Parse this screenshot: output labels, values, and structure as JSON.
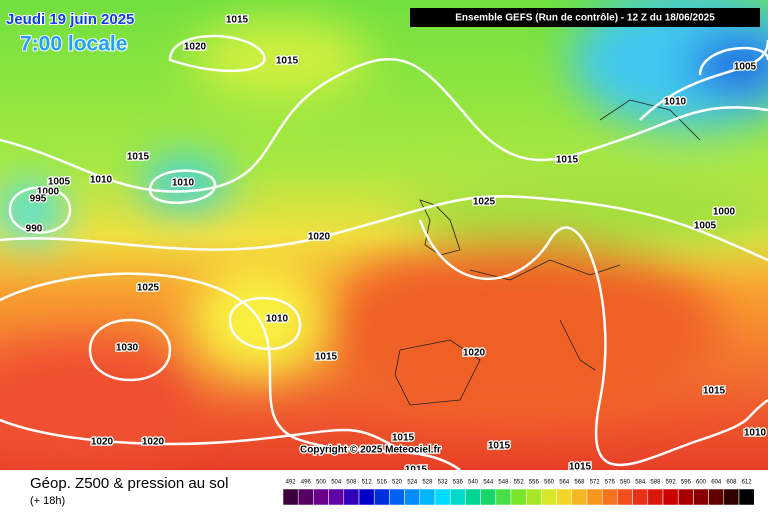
{
  "date": "Jeudi 19 juin 2025",
  "time": "7:00 locale",
  "header": "Ensemble GEFS  (Run de contrôle)  -  12 Z du 18/06/2025",
  "copyright": "Copyright © 2025 Meteociel.fr",
  "caption": "Géop. Z500 & pression au sol",
  "lead": "(+ 18h)",
  "scale": [
    492,
    496,
    500,
    504,
    508,
    512,
    516,
    520,
    524,
    528,
    532,
    536,
    540,
    544,
    548,
    552,
    556,
    560,
    564,
    568,
    572,
    576,
    580,
    584,
    588,
    592,
    596,
    600,
    604,
    608,
    612
  ],
  "isobar_labels": [
    "1015",
    "1020",
    "1015",
    "1005",
    "1010",
    "1015",
    "1015",
    "1010",
    "1005",
    "1010",
    "1000",
    "995",
    "1025",
    "1000",
    "990",
    "1005",
    "1020",
    "1025",
    "1010",
    "1030",
    "1020",
    "1015",
    "1015",
    "1015",
    "1015",
    "1010",
    "1020",
    "1020",
    "1015",
    "1015"
  ]
}
